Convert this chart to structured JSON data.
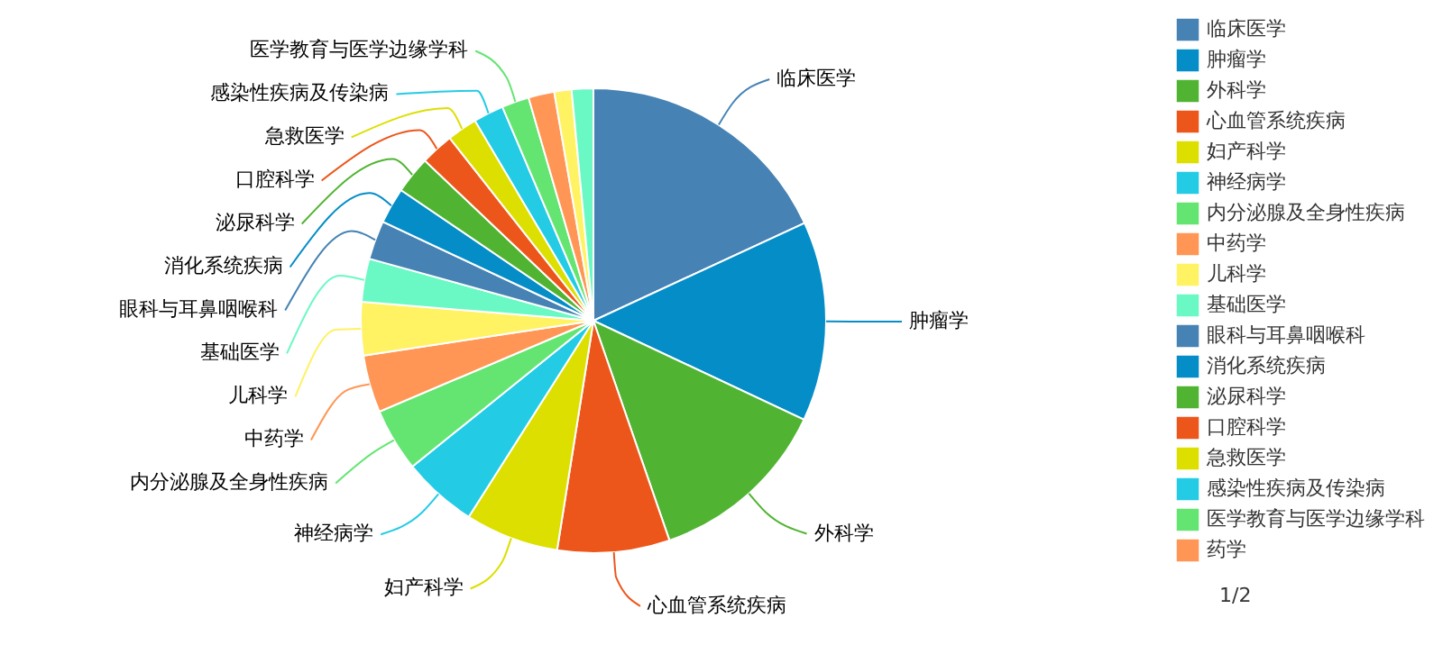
{
  "chart_data": {
    "type": "pie",
    "categories": [
      "临床医学",
      "肿瘤学",
      "外科学",
      "心血管系统疾病",
      "妇产科学",
      "神经病学",
      "内分泌腺及全身性疾病",
      "中药学",
      "儿科学",
      "基础医学",
      "眼科与耳鼻咽喉科",
      "消化系统疾病",
      "泌尿科学",
      "口腔科学",
      "急救医学",
      "感染性疾病及传染病",
      "医学教育与医学边缘学科",
      "药学",
      null,
      null
    ],
    "values": [
      18.1,
      13.9,
      12.7,
      7.8,
      6.5,
      5.2,
      4.4,
      4.0,
      3.7,
      3.0,
      2.7,
      2.5,
      2.6,
      2.3,
      2.1,
      2.1,
      1.9,
      1.8,
      1.2,
      1.5
    ],
    "colors": [
      "#4682b4",
      "#058dc7",
      "#50b432",
      "#ed561b",
      "#dddf00",
      "#24cbe5",
      "#64e572",
      "#ff9655",
      "#fff263",
      "#6af9c4",
      "#4682b4",
      "#058dc7",
      "#50b432",
      "#ed561b",
      "#dddf00",
      "#24cbe5",
      "#64e572",
      "#ff9655",
      "#fff263",
      "#6af9c4"
    ],
    "legend": "right",
    "annotations": [
      "1/2"
    ]
  }
}
